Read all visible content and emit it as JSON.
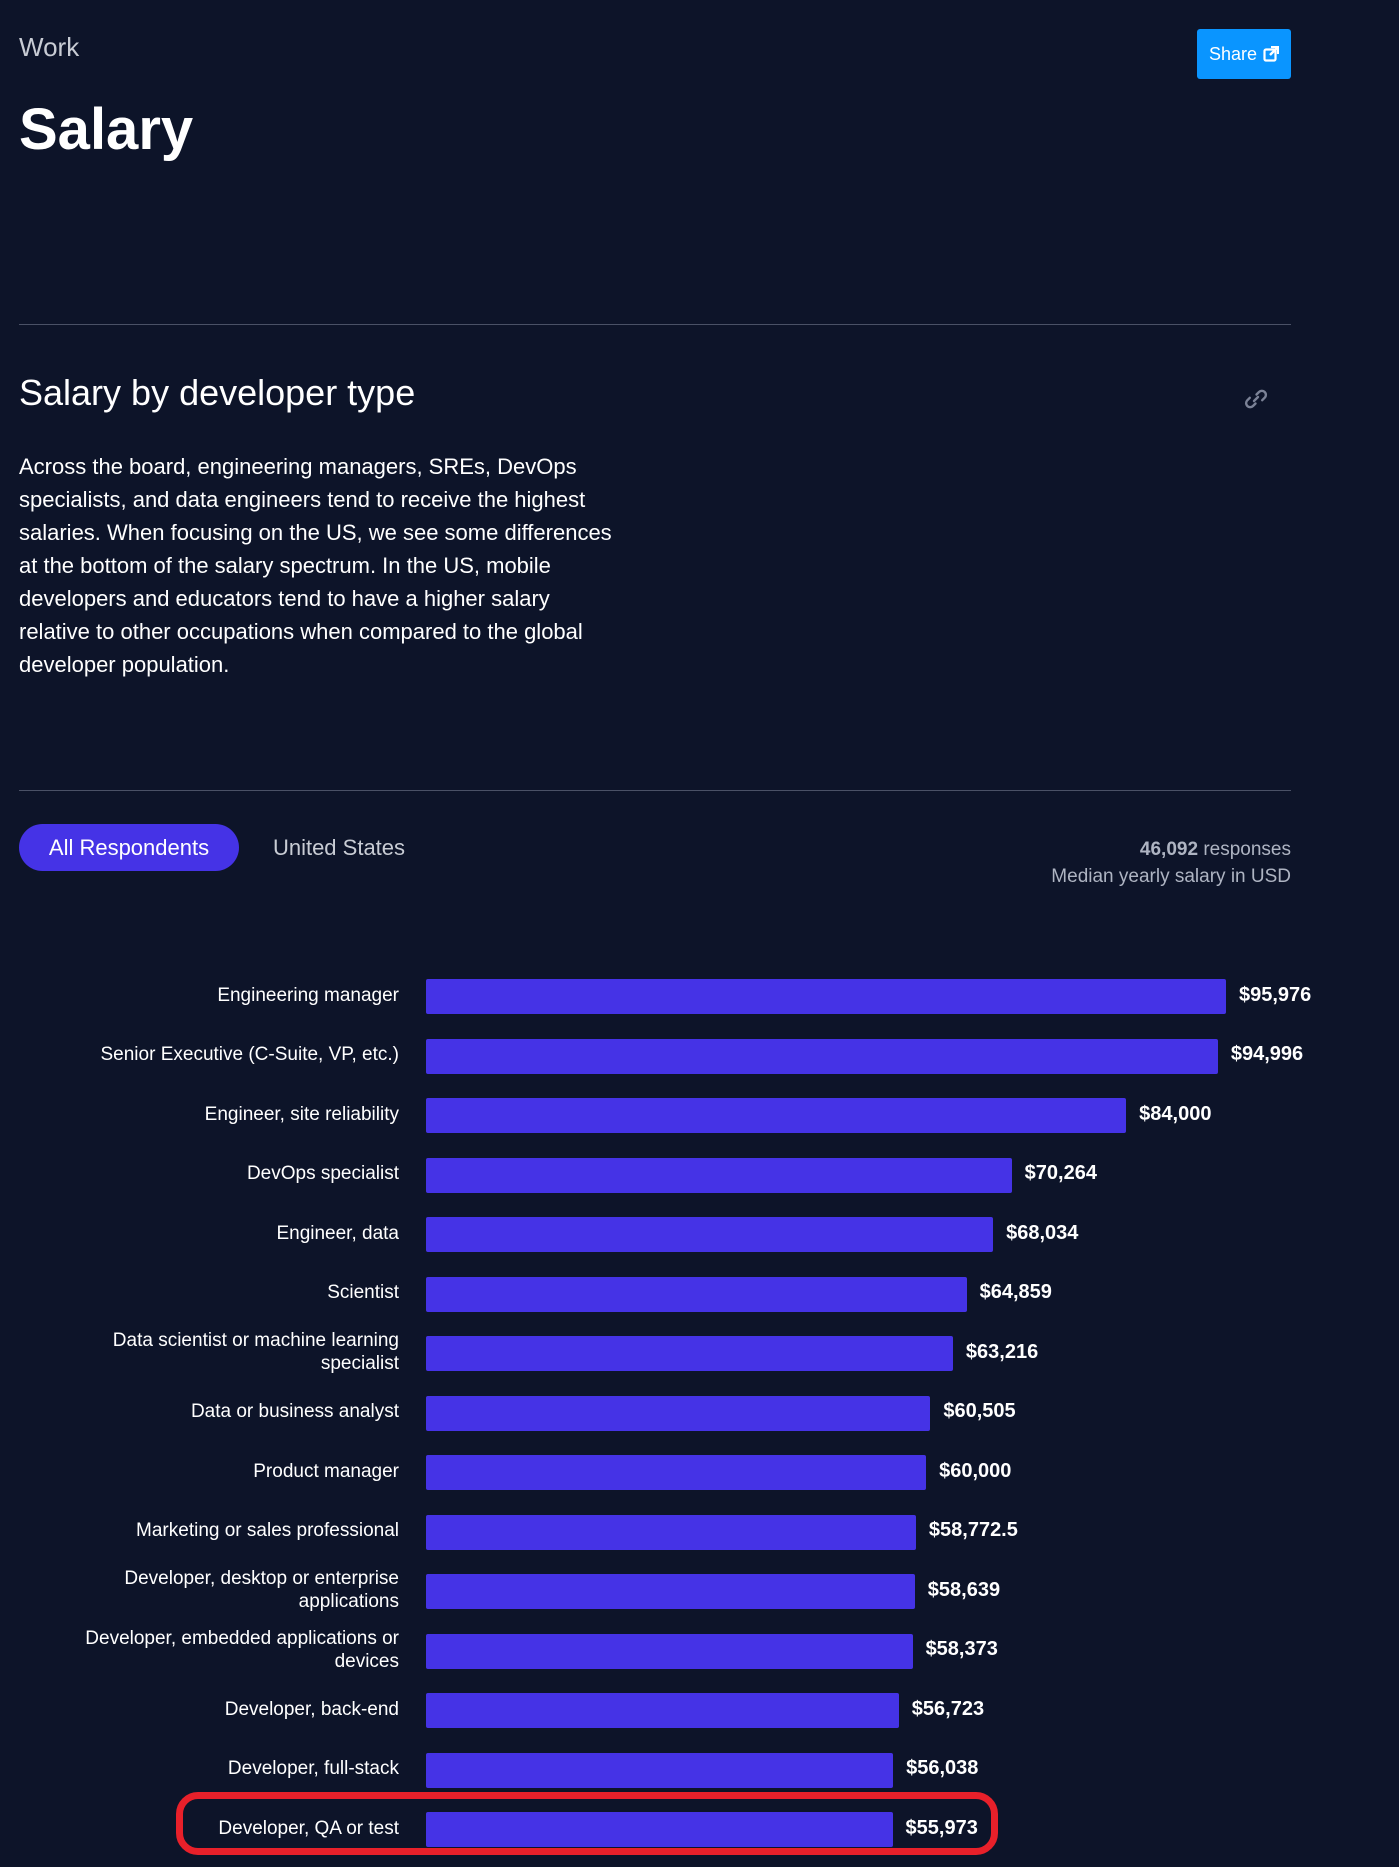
{
  "header": {
    "section_label": "Work",
    "title": "Salary",
    "share_label": "Share"
  },
  "section": {
    "heading": "Salary by developer type",
    "description": "Across the board, engineering managers, SREs, DevOps specialists, and data engineers tend to receive the highest salaries. When focusing on the US, we see some differences at the bottom of the salary spectrum. In the US, mobile developers and educators tend to have a higher salary relative to other occupations when compared to the global developer population."
  },
  "tabs": [
    {
      "label": "All Respondents",
      "active": true
    },
    {
      "label": "United States",
      "active": false
    }
  ],
  "meta": {
    "responses_count": "46,092",
    "responses_label": "responses",
    "subtitle": "Median yearly salary in USD"
  },
  "colors": {
    "background": "#0d1429",
    "bar": "#4533e6",
    "share_button": "#0a95ff",
    "highlight": "#e8202a"
  },
  "chart_data": {
    "type": "bar",
    "orientation": "horizontal",
    "title": "Salary by developer type",
    "xlabel": "Median yearly salary in USD",
    "ylabel": "",
    "xlim": [
      0,
      95976
    ],
    "categories": [
      "Engineering manager",
      "Senior Executive (C-Suite, VP, etc.)",
      "Engineer, site reliability",
      "DevOps specialist",
      "Engineer, data",
      "Scientist",
      "Data scientist or machine learning specialist",
      "Data or business analyst",
      "Product manager",
      "Marketing or sales professional",
      "Developer, desktop or enterprise applications",
      "Developer, embedded applications or devices",
      "Developer, back-end",
      "Developer, full-stack",
      "Developer, QA or test"
    ],
    "values": [
      95976,
      94996,
      84000,
      70264,
      68034,
      64859,
      63216,
      60505,
      60000,
      58772.5,
      58639,
      58373,
      56723,
      56038,
      55973
    ],
    "value_labels": [
      "$95,976",
      "$94,996",
      "$84,000",
      "$70,264",
      "$68,034",
      "$64,859",
      "$63,216",
      "$60,505",
      "$60,000",
      "$58,772.5",
      "$58,639",
      "$58,373",
      "$56,723",
      "$56,038",
      "$55,973"
    ],
    "highlighted_category": "Developer, QA or test"
  }
}
